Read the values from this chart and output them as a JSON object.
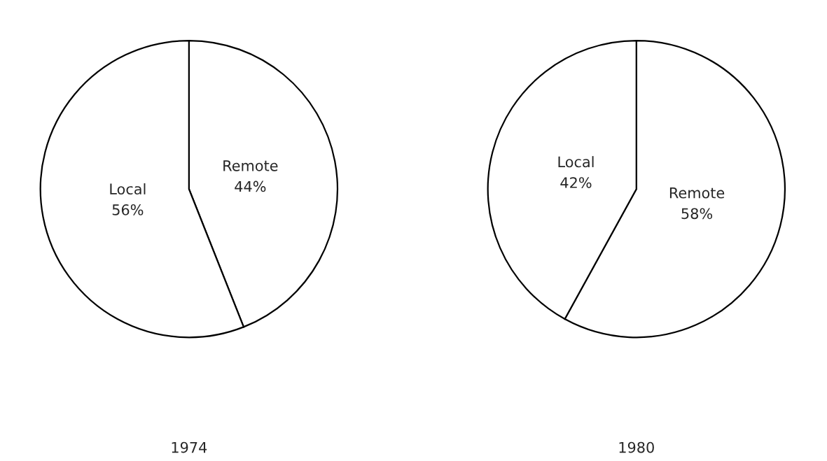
{
  "chart_data": [
    {
      "type": "pie",
      "title": "1974",
      "categories": [
        "Remote",
        "Local"
      ],
      "values": [
        44,
        56
      ],
      "value_labels": [
        "44%",
        "56%"
      ],
      "colors": [
        "#ffffff",
        "#ffffff"
      ]
    },
    {
      "type": "pie",
      "title": "1980",
      "categories": [
        "Remote",
        "Local"
      ],
      "values": [
        58,
        42
      ],
      "value_labels": [
        "58%",
        "42%"
      ],
      "colors": [
        "#ffffff",
        "#ffffff"
      ]
    }
  ]
}
